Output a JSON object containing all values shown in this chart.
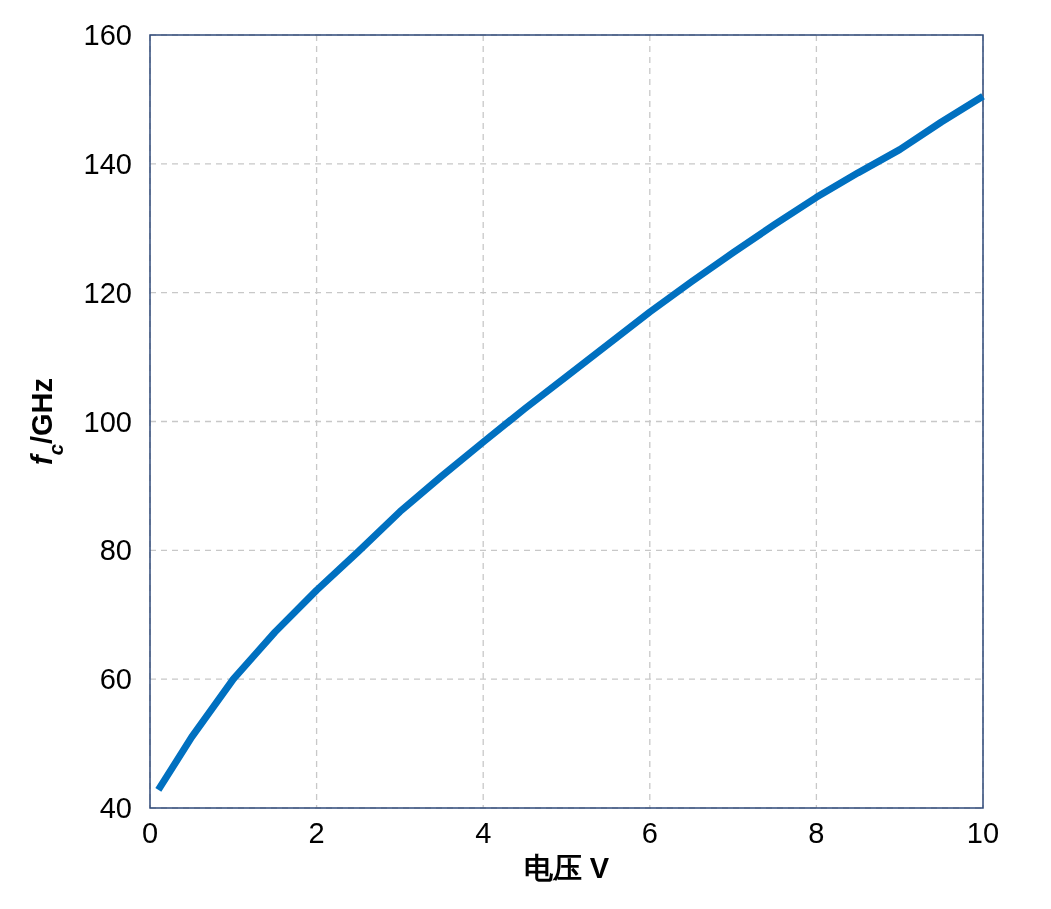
{
  "chart_data": {
    "type": "line",
    "xlabel": "电压 V",
    "ylabel": "f$_{c}$/GHz",
    "x": [
      0.1,
      0.5,
      1,
      1.5,
      2,
      2.5,
      3,
      3.5,
      4,
      4.5,
      5,
      5.5,
      6,
      6.5,
      7,
      7.5,
      8,
      8.5,
      9,
      9.5,
      10
    ],
    "series": [
      {
        "color": "#0070c0",
        "values": [
          42.8,
          51,
          60,
          67.3,
          73.8,
          79.8,
          86,
          91.5,
          96.8,
          102,
          107,
          112,
          117,
          121.7,
          126.2,
          130.6,
          134.8,
          138.6,
          142.2,
          146.5,
          150.5
        ]
      }
    ],
    "xlim": [
      0,
      10
    ],
    "ylim": [
      40,
      160
    ],
    "xticks": [
      0,
      2,
      4,
      6,
      8,
      10
    ],
    "yticks": [
      40,
      60,
      80,
      100,
      120,
      140,
      160
    ],
    "grid": true
  }
}
